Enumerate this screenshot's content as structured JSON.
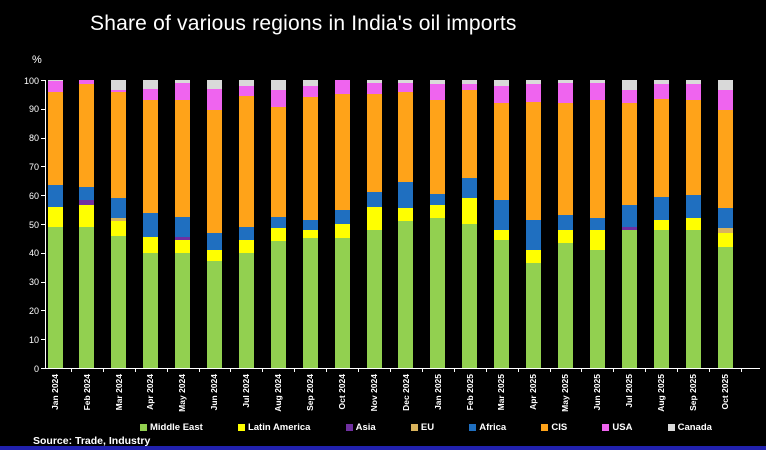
{
  "page": {
    "background": "#000000",
    "bottom_strip_color": "#2121AE",
    "axis_color": "#FFFFFF",
    "text_color": "#FFFFFF"
  },
  "title": "Share of various regions in India's oil imports",
  "source": "Source: Trade, Industry",
  "chart_data": {
    "type": "bar",
    "stacked": true,
    "title": "Share of various regions in India's oil imports",
    "ylabel": "%",
    "xlabel": "",
    "ylim": [
      0,
      100
    ],
    "yticks": [
      0,
      10,
      20,
      30,
      40,
      50,
      60,
      70,
      80,
      90,
      100
    ],
    "grid": false,
    "legend_position": "bottom",
    "categories": [
      "Jan 2024",
      "Feb 2024",
      "Mar 2024",
      "Apr 2024",
      "May 2024",
      "Jun 2024",
      "Jul 2024",
      "Aug 2024",
      "Sep 2024",
      "Oct 2024",
      "Nov 2024",
      "Dec 2024",
      "Jan 2025",
      "Feb 2025",
      "Mar 2025",
      "Apr 2025",
      "May 2025",
      "Jun 2025",
      "Jul 2025",
      "Aug 2025",
      "Sep 2025",
      "Oct 2025"
    ],
    "series": [
      {
        "name": "Middle East",
        "color": "#92D050",
        "values": [
          49,
          49,
          46,
          40,
          40,
          37,
          40,
          44,
          45,
          45,
          48,
          51,
          52,
          50,
          44.5,
          36.5,
          43.5,
          41,
          48,
          48,
          48,
          42
        ]
      },
      {
        "name": "Latin America",
        "color": "#FFFF00",
        "values": [
          7,
          7.5,
          5,
          5.5,
          4.5,
          4,
          4.5,
          4.5,
          3,
          5,
          8,
          4.5,
          4.5,
          9,
          3.5,
          4.5,
          4.5,
          7,
          0,
          3.5,
          4,
          5
        ]
      },
      {
        "name": "Asia",
        "color": "#7030A0",
        "values": [
          0,
          2,
          0,
          0,
          1,
          0,
          0,
          0,
          0,
          0,
          0,
          0,
          0,
          0,
          0,
          0,
          0,
          0,
          1,
          0,
          0,
          0
        ]
      },
      {
        "name": "EU",
        "color": "#D9B35C",
        "values": [
          0,
          0,
          1,
          0,
          0,
          0,
          0,
          0,
          0,
          0,
          0,
          0,
          0,
          0,
          0,
          0,
          0,
          0,
          0,
          0,
          0,
          1.5
        ]
      },
      {
        "name": "Africa",
        "color": "#1F6FC0",
        "values": [
          7.5,
          4.5,
          7,
          8.5,
          7,
          6,
          4.5,
          4,
          3.5,
          5,
          5,
          9,
          4,
          7,
          10.5,
          10.5,
          5,
          4,
          7.5,
          8,
          8,
          7
        ]
      },
      {
        "name": "CIS",
        "color": "#FFA319",
        "values": [
          32.5,
          35.5,
          37,
          39,
          40.5,
          42.5,
          45.5,
          38,
          42.5,
          40,
          34,
          31.5,
          32.5,
          30.5,
          33.5,
          41,
          39,
          41,
          35.5,
          34,
          33,
          34
        ]
      },
      {
        "name": "USA",
        "color": "#EF64EF",
        "values": [
          3.5,
          1.5,
          0.5,
          4,
          6,
          7.5,
          3.5,
          6,
          4,
          5,
          4,
          3,
          5.5,
          2,
          6,
          6,
          7,
          6,
          4.5,
          5,
          5.5,
          7
        ]
      },
      {
        "name": "Canada",
        "color": "#D9D9D9",
        "values": [
          0.5,
          0,
          3.5,
          3,
          1,
          3,
          2,
          3.5,
          2,
          0,
          1,
          1,
          1.5,
          1.5,
          2,
          1.5,
          1,
          1,
          3.5,
          1.5,
          1.5,
          3.5
        ]
      }
    ]
  }
}
